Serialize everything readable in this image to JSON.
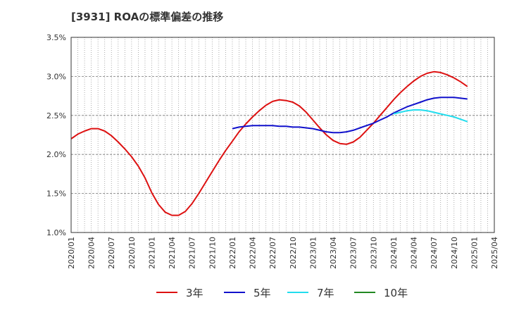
{
  "chart_data": {
    "type": "line",
    "title": "[3931]  ROAの標準偏差の推移",
    "xlabel": "",
    "ylabel": "",
    "ylim": [
      1.0,
      3.5
    ],
    "y_ticks": [
      "1.0%",
      "1.5%",
      "2.0%",
      "2.5%",
      "3.0%",
      "3.5%"
    ],
    "x_range": [
      "2020/01",
      "2025/04"
    ],
    "x_ticks": [
      "2020/01",
      "2020/04",
      "2020/07",
      "2020/10",
      "2021/01",
      "2021/04",
      "2021/07",
      "2021/10",
      "2022/01",
      "2022/04",
      "2022/07",
      "2022/10",
      "2023/01",
      "2023/04",
      "2023/07",
      "2023/10",
      "2024/01",
      "2024/04",
      "2024/07",
      "2024/10",
      "2025/01",
      "2025/04"
    ],
    "grid": true,
    "legend_position": "bottom",
    "series": [
      {
        "name": "3年",
        "color": "#dd1111",
        "points": [
          [
            "2020/01",
            2.2
          ],
          [
            "2020/02",
            2.26
          ],
          [
            "2020/03",
            2.3
          ],
          [
            "2020/04",
            2.33
          ],
          [
            "2020/05",
            2.33
          ],
          [
            "2020/06",
            2.3
          ],
          [
            "2020/07",
            2.24
          ],
          [
            "2020/08",
            2.16
          ],
          [
            "2020/09",
            2.07
          ],
          [
            "2020/10",
            1.97
          ],
          [
            "2020/11",
            1.85
          ],
          [
            "2020/12",
            1.7
          ],
          [
            "2021/01",
            1.51
          ],
          [
            "2021/02",
            1.36
          ],
          [
            "2021/03",
            1.26
          ],
          [
            "2021/04",
            1.22
          ],
          [
            "2021/05",
            1.22
          ],
          [
            "2021/06",
            1.27
          ],
          [
            "2021/07",
            1.37
          ],
          [
            "2021/08",
            1.5
          ],
          [
            "2021/09",
            1.64
          ],
          [
            "2021/10",
            1.78
          ],
          [
            "2021/11",
            1.92
          ],
          [
            "2021/12",
            2.05
          ],
          [
            "2022/01",
            2.17
          ],
          [
            "2022/02",
            2.29
          ],
          [
            "2022/03",
            2.39
          ],
          [
            "2022/04",
            2.48
          ],
          [
            "2022/05",
            2.56
          ],
          [
            "2022/06",
            2.63
          ],
          [
            "2022/07",
            2.68
          ],
          [
            "2022/08",
            2.7
          ],
          [
            "2022/09",
            2.69
          ],
          [
            "2022/10",
            2.67
          ],
          [
            "2022/11",
            2.62
          ],
          [
            "2022/12",
            2.54
          ],
          [
            "2023/01",
            2.44
          ],
          [
            "2023/02",
            2.34
          ],
          [
            "2023/03",
            2.25
          ],
          [
            "2023/04",
            2.18
          ],
          [
            "2023/05",
            2.14
          ],
          [
            "2023/06",
            2.13
          ],
          [
            "2023/07",
            2.16
          ],
          [
            "2023/08",
            2.22
          ],
          [
            "2023/09",
            2.31
          ],
          [
            "2023/10",
            2.4
          ],
          [
            "2023/11",
            2.5
          ],
          [
            "2023/12",
            2.6
          ],
          [
            "2024/01",
            2.7
          ],
          [
            "2024/02",
            2.79
          ],
          [
            "2024/03",
            2.87
          ],
          [
            "2024/04",
            2.94
          ],
          [
            "2024/05",
            3.0
          ],
          [
            "2024/06",
            3.04
          ],
          [
            "2024/07",
            3.06
          ],
          [
            "2024/08",
            3.05
          ],
          [
            "2024/09",
            3.02
          ],
          [
            "2024/10",
            2.98
          ],
          [
            "2024/11",
            2.93
          ],
          [
            "2024/12",
            2.87
          ]
        ]
      },
      {
        "name": "5年",
        "color": "#1111cc",
        "points": [
          [
            "2022/01",
            2.33
          ],
          [
            "2022/02",
            2.35
          ],
          [
            "2022/03",
            2.36
          ],
          [
            "2022/04",
            2.37
          ],
          [
            "2022/05",
            2.37
          ],
          [
            "2022/06",
            2.37
          ],
          [
            "2022/07",
            2.37
          ],
          [
            "2022/08",
            2.36
          ],
          [
            "2022/09",
            2.36
          ],
          [
            "2022/10",
            2.35
          ],
          [
            "2022/11",
            2.35
          ],
          [
            "2022/12",
            2.34
          ],
          [
            "2023/01",
            2.33
          ],
          [
            "2023/02",
            2.31
          ],
          [
            "2023/03",
            2.29
          ],
          [
            "2023/04",
            2.28
          ],
          [
            "2023/05",
            2.28
          ],
          [
            "2023/06",
            2.29
          ],
          [
            "2023/07",
            2.31
          ],
          [
            "2023/08",
            2.34
          ],
          [
            "2023/09",
            2.37
          ],
          [
            "2023/10",
            2.4
          ],
          [
            "2023/11",
            2.44
          ],
          [
            "2023/12",
            2.48
          ],
          [
            "2024/01",
            2.53
          ],
          [
            "2024/02",
            2.57
          ],
          [
            "2024/03",
            2.61
          ],
          [
            "2024/04",
            2.64
          ],
          [
            "2024/05",
            2.67
          ],
          [
            "2024/06",
            2.7
          ],
          [
            "2024/07",
            2.72
          ],
          [
            "2024/08",
            2.73
          ],
          [
            "2024/09",
            2.73
          ],
          [
            "2024/10",
            2.73
          ],
          [
            "2024/11",
            2.72
          ],
          [
            "2024/12",
            2.71
          ]
        ]
      },
      {
        "name": "7年",
        "color": "#22ddee",
        "points": [
          [
            "2024/01",
            2.52
          ],
          [
            "2024/02",
            2.54
          ],
          [
            "2024/03",
            2.56
          ],
          [
            "2024/04",
            2.57
          ],
          [
            "2024/05",
            2.57
          ],
          [
            "2024/06",
            2.56
          ],
          [
            "2024/07",
            2.54
          ],
          [
            "2024/08",
            2.52
          ],
          [
            "2024/09",
            2.5
          ],
          [
            "2024/10",
            2.48
          ],
          [
            "2024/11",
            2.45
          ],
          [
            "2024/12",
            2.42
          ]
        ]
      },
      {
        "name": "10年",
        "color": "#228822",
        "points": []
      }
    ]
  }
}
